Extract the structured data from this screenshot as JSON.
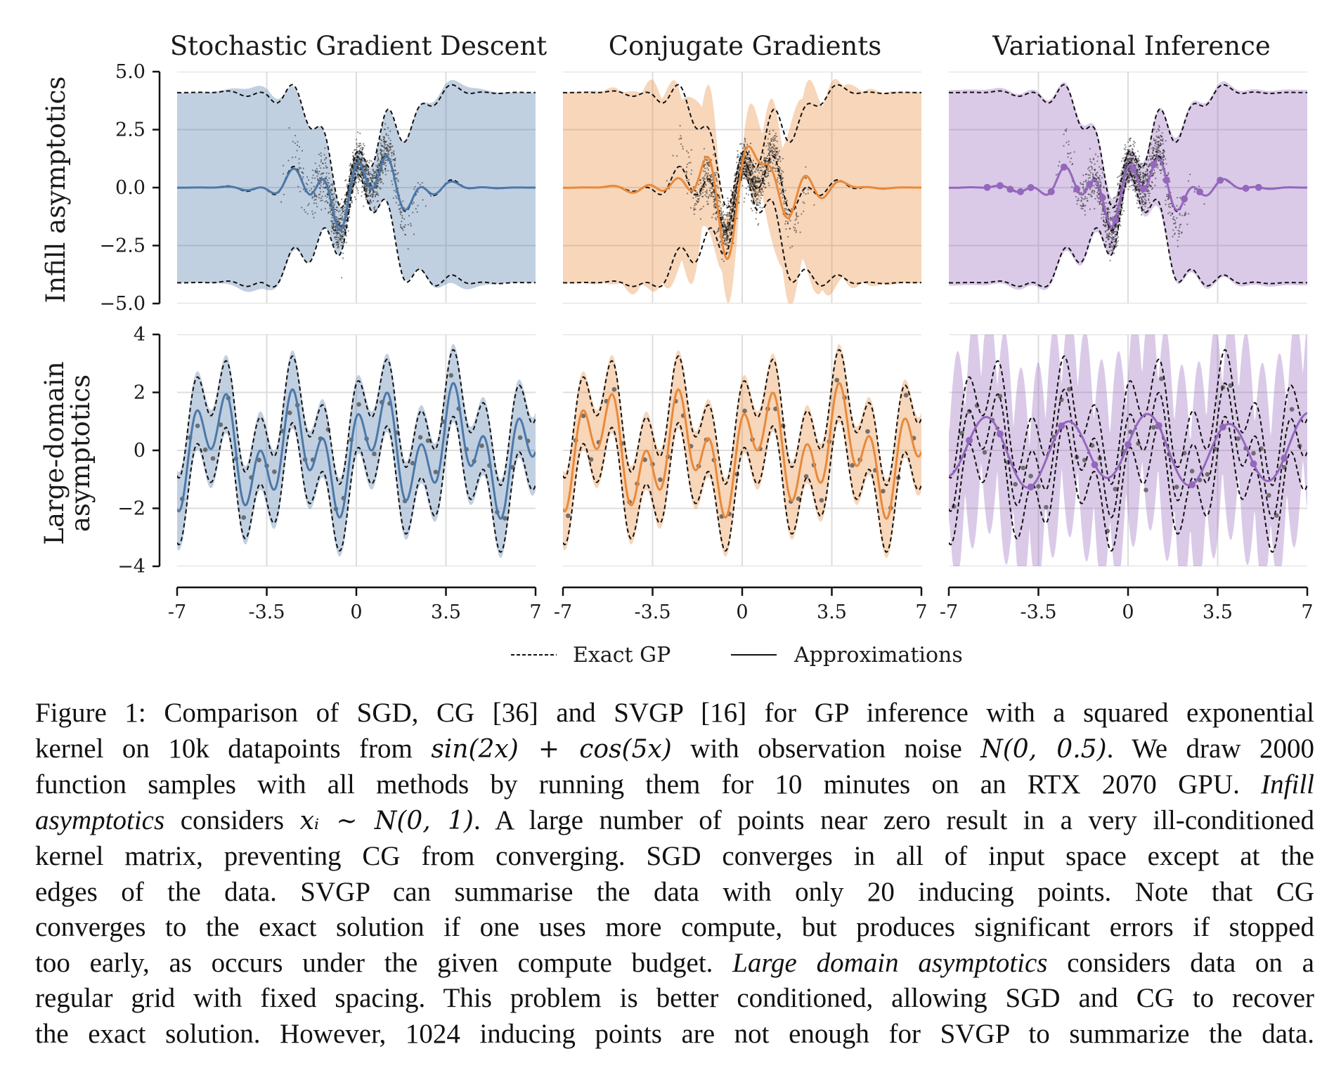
{
  "figure": {
    "column_titles": [
      "Stochastic Gradient Descent",
      "Conjugate Gradients",
      "Variational Inference"
    ],
    "row_labels": [
      [
        "Infill asymptotics"
      ],
      [
        "Large-domain",
        "asymptotics"
      ]
    ],
    "legend": {
      "exact": "Exact GP",
      "approx": "Approximations"
    },
    "colors": {
      "sgd": "#4c78a8",
      "cg": "#e8893a",
      "vi": "#9467bd",
      "exact": "#111111",
      "data": "#333333"
    }
  },
  "chart_data": [
    {
      "type": "line",
      "row": "Infill asymptotics",
      "ylim": [
        -5.0,
        5.0
      ],
      "yticks": [
        "5.0",
        "2.5",
        "0.0",
        "−2.5",
        "−5.0"
      ],
      "xlim": [
        -7,
        7
      ],
      "xticks": [
        "-7",
        "-3.5",
        "0",
        "3.5",
        "7"
      ],
      "panels": [
        {
          "title": "Stochastic Gradient Descent",
          "method": "sgd",
          "data_cloud": "x ~ N(0,1), y = sin(2x)+cos(5x)+noise"
        },
        {
          "title": "Conjugate Gradients",
          "method": "cg"
        },
        {
          "title": "Variational Inference",
          "method": "vi",
          "inducing_points": 20
        }
      ],
      "exact_gp_band_far_field": [
        -4.1,
        4.1
      ]
    },
    {
      "type": "line",
      "row": "Large-domain asymptotics",
      "ylim": [
        -4,
        4
      ],
      "yticks": [
        "4",
        "2",
        "0",
        "−2",
        "−4"
      ],
      "xlim": [
        -7,
        7
      ],
      "xticks": [
        "-7",
        "-3.5",
        "0",
        "3.5",
        "7"
      ],
      "panels": [
        {
          "title": "Stochastic Gradient Descent",
          "method": "sgd"
        },
        {
          "title": "Conjugate Gradients",
          "method": "cg"
        },
        {
          "title": "Variational Inference",
          "method": "vi",
          "inducing_points": 1024
        }
      ],
      "data_points_x": [
        -6.8,
        -6.5,
        -6.2,
        -5.9,
        -5.6,
        -5.3,
        -5.0,
        -4.7,
        -4.4,
        -4.1,
        -3.8,
        -3.5,
        -3.2,
        -2.9,
        -2.6,
        -2.3,
        -2.0,
        -1.7,
        -1.4,
        -1.1,
        -0.8,
        -0.5,
        -0.2,
        0.1,
        0.4,
        0.7,
        1.0,
        1.3,
        1.6,
        1.9,
        2.2,
        2.5,
        2.8,
        3.1,
        3.4,
        3.7,
        4.0,
        4.3,
        4.6,
        4.9,
        5.2,
        5.5,
        5.8,
        6.1,
        6.4,
        6.7
      ]
    }
  ],
  "caption": {
    "lines": [
      [
        "Figure 1: Comparison of SGD, CG [36] and SVGP [16] for GP inference with a squared exponential"
      ],
      [
        "kernel on 10k datapoints from ",
        {
          "math": "sin(2x) + cos(5x)"
        },
        " with observation noise ",
        {
          "math": "N(0, 0.5)"
        },
        ". We draw 2000"
      ],
      [
        "function samples with all methods by running them for 10 minutes on an RTX 2070 GPU. ",
        {
          "em": "Infill"
        }
      ],
      [
        {
          "em": "asymptotics"
        },
        " considers ",
        {
          "math": "xᵢ ∼ N(0, 1)"
        },
        ". A large number of points near zero result in a very ill-conditioned"
      ],
      [
        "kernel matrix, preventing CG from converging. SGD converges in all of input space except at the"
      ],
      [
        "edges of the data.  SVGP can summarise the data with only 20 inducing points.  Note that CG"
      ],
      [
        "converges to the exact solution if one uses more compute, but produces significant errors if stopped"
      ],
      [
        "too early, as occurs under the given compute budget. ",
        {
          "em": "Large domain asymptotics"
        },
        " considers data on a"
      ],
      [
        "regular grid with fixed spacing. This problem is better conditioned, allowing SGD and CG to recover"
      ],
      [
        "the exact solution. However, 1024 inducing points are not enough for SVGP to summarize the data."
      ]
    ]
  }
}
